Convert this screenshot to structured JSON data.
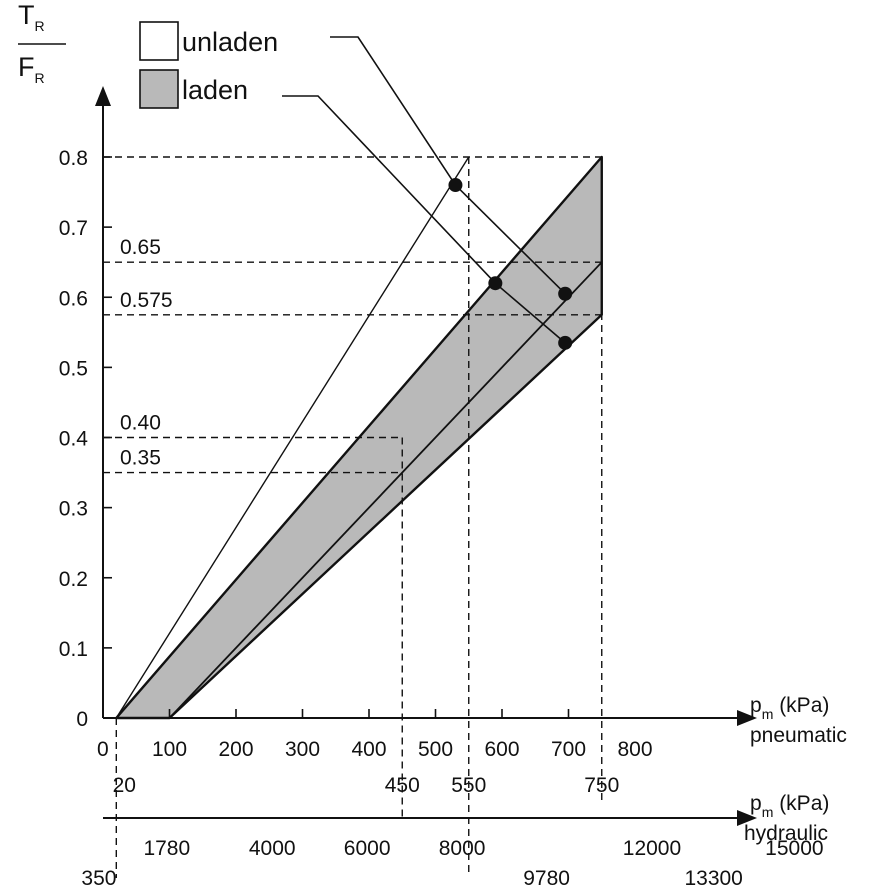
{
  "chart_data": {
    "type": "line",
    "title": "",
    "y_label": {
      "num": "T",
      "num_sub": "R",
      "den": "F",
      "den_sub": "R"
    },
    "x_pneumatic": {
      "label_main": "p",
      "label_sub": "m",
      "label_unit": " (kPa)",
      "label_kind": "pneumatic",
      "range": [
        0,
        800
      ],
      "ticks": [
        {
          "v": 0,
          "t": "0"
        },
        {
          "v": 100,
          "t": "100"
        },
        {
          "v": 200,
          "t": "200"
        },
        {
          "v": 300,
          "t": "300"
        },
        {
          "v": 400,
          "t": "400"
        },
        {
          "v": 500,
          "t": "500"
        },
        {
          "v": 600,
          "t": "600"
        },
        {
          "v": 700,
          "t": "700"
        },
        {
          "v": 800,
          "t": "800"
        }
      ],
      "marks": [
        {
          "v": 20,
          "t": "20"
        },
        {
          "v": 450,
          "t": "450"
        },
        {
          "v": 550,
          "t": "550"
        },
        {
          "v": 750,
          "t": "750"
        }
      ]
    },
    "x_hydraulic": {
      "label_main": "p",
      "label_sub": "m",
      "label_unit": " (kPa)",
      "label_kind": "hydraulic",
      "ticks": [
        {
          "v": 1780,
          "t": "1780"
        },
        {
          "v": 4000,
          "t": "4000"
        },
        {
          "v": 6000,
          "t": "6000"
        },
        {
          "v": 8000,
          "t": "8000"
        },
        {
          "v": 12000,
          "t": "12000"
        },
        {
          "v": 15000,
          "t": "15000"
        }
      ],
      "marks": [
        {
          "v": 350,
          "t": "350"
        },
        {
          "v": 9780,
          "t": "9780"
        },
        {
          "v": 13300,
          "t": "13300"
        }
      ]
    },
    "y_range": [
      0,
      0.8
    ],
    "y_ticks": [
      {
        "v": 0,
        "t": "0"
      },
      {
        "v": 0.1,
        "t": "0.1"
      },
      {
        "v": 0.2,
        "t": "0.2"
      },
      {
        "v": 0.3,
        "t": "0.3"
      },
      {
        "v": 0.4,
        "t": "0.4"
      },
      {
        "v": 0.5,
        "t": "0.5"
      },
      {
        "v": 0.6,
        "t": "0.6"
      },
      {
        "v": 0.7,
        "t": "0.7"
      },
      {
        "v": 0.8,
        "t": "0.8"
      }
    ],
    "reference_levels": [
      {
        "v": 0.65,
        "t": "0.65"
      },
      {
        "v": 0.575,
        "t": "0.575"
      },
      {
        "v": 0.4,
        "t": "0.40"
      },
      {
        "v": 0.35,
        "t": "0.35"
      }
    ],
    "legend": [
      {
        "label": "unladen",
        "fill": "#ffffff",
        "points_to": {
          "x": 530,
          "y": 0.76
        }
      },
      {
        "label": "laden",
        "fill": "#b9b9b9",
        "points_to": {
          "x": 590,
          "y": 0.62
        }
      }
    ],
    "series": [
      {
        "name": "unladen",
        "kind": "line",
        "x": [
          20,
          550
        ],
        "y": [
          0,
          0.8
        ]
      },
      {
        "name": "laden",
        "kind": "band",
        "upper": {
          "x": [
            20,
            750
          ],
          "y": [
            0,
            0.8
          ]
        },
        "lower": {
          "x": [
            100,
            750
          ],
          "y": [
            0,
            0.575
          ]
        }
      },
      {
        "name": "",
        "kind": "line",
        "x": [
          100,
          750
        ],
        "y": [
          0,
          0.65
        ]
      }
    ],
    "points": [
      {
        "x": 530,
        "y": 0.76
      },
      {
        "x": 590,
        "y": 0.62
      },
      {
        "x": 695,
        "y": 0.605
      },
      {
        "x": 695,
        "y": 0.535
      }
    ],
    "colors": {
      "band_fill": "#b9b9b9",
      "ink": "#111111"
    }
  }
}
